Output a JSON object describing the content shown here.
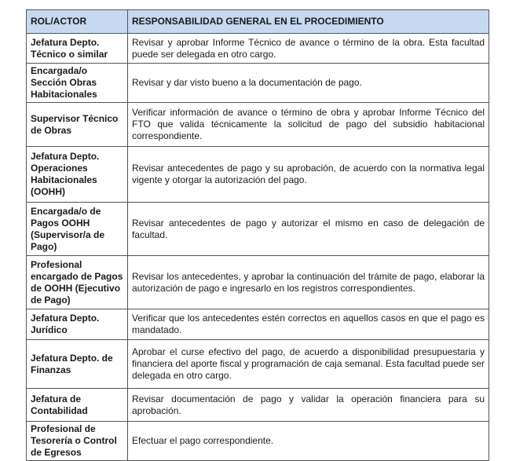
{
  "headers": [
    "ROL/ACTOR",
    "RESPONSABILIDAD GENERAL EN EL PROCEDIMIENTO"
  ],
  "rows": [
    {
      "role": "Jefatura Depto. Técnico o similar",
      "desc": "Revisar y aprobar Informe Técnico de avance o término de la obra. Esta facultad puede ser delegada en otro cargo."
    },
    {
      "role": "Encargada/o Sección Obras Habitacionales",
      "desc": "Revisar y dar visto bueno a la documentación de pago."
    },
    {
      "role": "Supervisor Técnico de Obras",
      "desc": "Verificar información de avance o término de obra y aprobar Informe Técnico del FTO que valida técnicamente la solicitud de pago del subsidio habitacional correspondiente."
    },
    {
      "role": "Jefatura Depto. Operaciones Habitacionales (OOHH)",
      "desc": "Revisar antecedentes de pago y su aprobación, de acuerdo con la normativa legal vigente y otorgar la autorización del pago."
    },
    {
      "role": "Encargada/o de Pagos OOHH (Supervisor/a de Pago)",
      "desc": "Revisar antecedentes de pago y autorizar el mismo en caso de delegación de facultad."
    },
    {
      "role": "Profesional encargado de Pagos de OOHH (Ejecutivo de Pago)",
      "desc": "Revisar los antecedentes, y aprobar la continuación del trámite de pago, elaborar la autorización de pago e ingresarlo en los registros correspondientes."
    },
    {
      "role": "Jefatura Depto. Jurídico",
      "desc": "Verificar que los antecedentes estén correctos en aquellos casos en que el pago es mandatado."
    },
    {
      "role": "Jefatura Depto. de Finanzas",
      "desc": "Aprobar el curse efectivo del pago, de acuerdo a disponibilidad presupuestaria y financiera del aporte fiscal y programación de caja semanal. Esta facultad puede ser delegada en otro cargo."
    },
    {
      "role": "Jefatura de Contabilidad",
      "desc": "Revisar documentación de pago y validar la operación financiera para su aprobación."
    },
    {
      "role": "Profesional de Tesorería o Control de Egresos",
      "desc": "Efectuar el pago correspondiente."
    }
  ]
}
